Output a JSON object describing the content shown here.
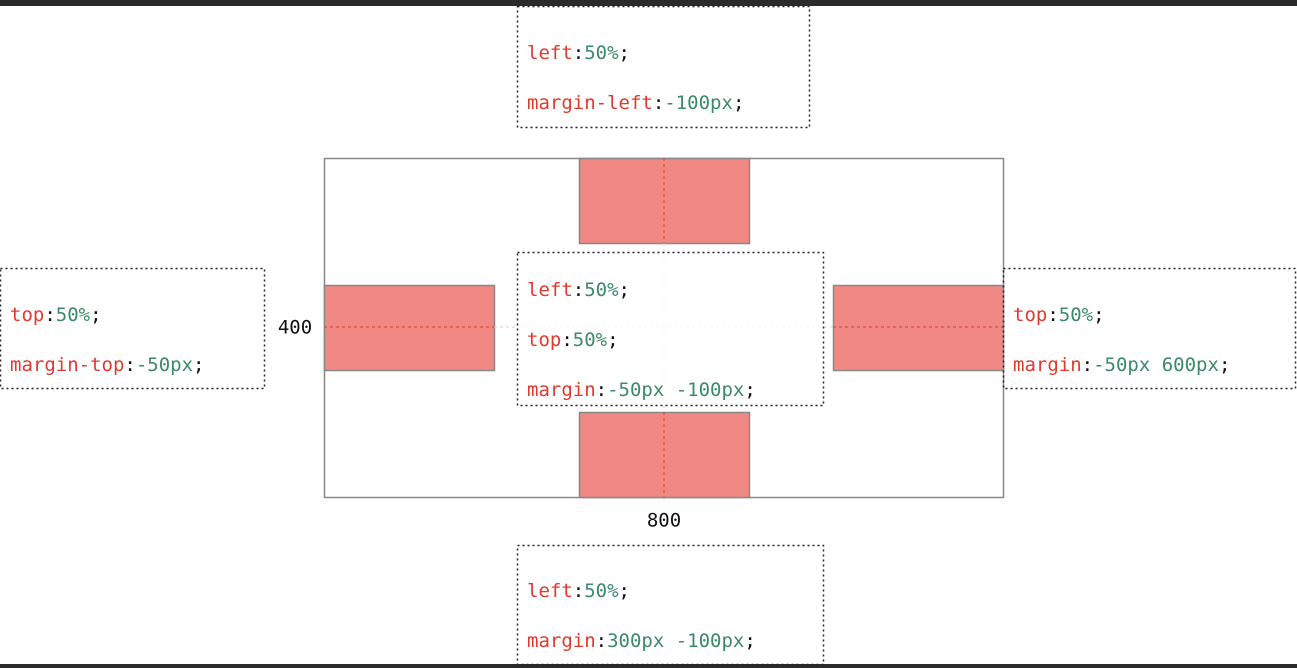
{
  "punctuation": {
    "colon": ":",
    "semicolon": ";"
  },
  "dimensions": {
    "height": "400",
    "width": "800"
  },
  "code_boxes": [
    {
      "lines": [
        {
          "property": "left",
          "value": "50%"
        },
        {
          "property": "margin-left",
          "value": "-100px"
        }
      ]
    },
    {
      "lines": [
        {
          "property": "left",
          "value": "50%"
        },
        {
          "property": "top",
          "value": "50%"
        },
        {
          "property": "margin",
          "value": "-50px -100px"
        }
      ]
    },
    {
      "lines": [
        {
          "property": "top",
          "value": "50%"
        },
        {
          "property": "margin-top",
          "value": "-50px"
        }
      ]
    },
    {
      "lines": [
        {
          "property": "top",
          "value": "50%"
        },
        {
          "property": "margin",
          "value": "-50px 600px"
        }
      ]
    },
    {
      "lines": [
        {
          "property": "left",
          "value": "50%"
        },
        {
          "property": "margin",
          "value": "300px -100px"
        }
      ]
    }
  ]
}
